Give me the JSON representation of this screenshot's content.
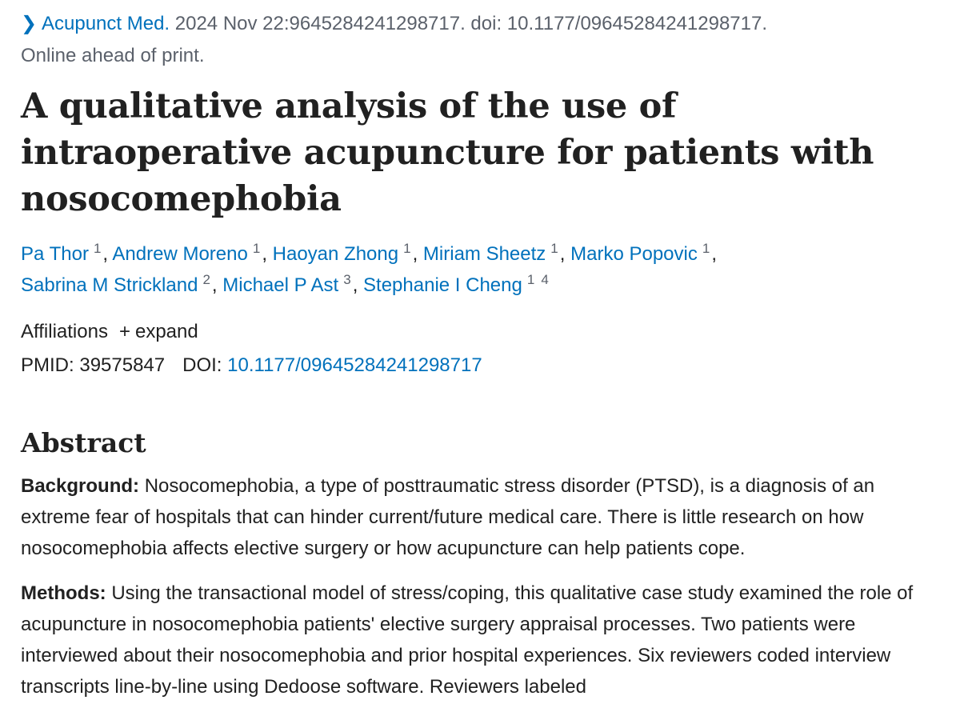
{
  "citation": {
    "journal": "Acupunct Med.",
    "details": "2024 Nov 22:9645284241298717. doi: 10.1177/09645284241298717.",
    "status": "Online ahead of print."
  },
  "title": "A qualitative analysis of the use of intraoperative acupuncture for patients with nosocomephobia",
  "authors": {
    "separator": ",",
    "list": [
      {
        "name": "Pa Thor",
        "refs": [
          "1"
        ]
      },
      {
        "name": "Andrew Moreno",
        "refs": [
          "1"
        ]
      },
      {
        "name": "Haoyan Zhong",
        "refs": [
          "1"
        ]
      },
      {
        "name": "Miriam Sheetz",
        "refs": [
          "1"
        ]
      },
      {
        "name": "Marko Popovic",
        "refs": [
          "1"
        ]
      },
      {
        "name": "Sabrina M Strickland",
        "refs": [
          "2"
        ]
      },
      {
        "name": "Michael P Ast",
        "refs": [
          "3"
        ]
      },
      {
        "name": "Stephanie I Cheng",
        "refs": [
          "1",
          "4"
        ]
      }
    ]
  },
  "affiliations": {
    "label": "Affiliations",
    "toggle": "expand"
  },
  "identifiers": {
    "pmid_label": "PMID:",
    "pmid": "39575847",
    "doi_label": "DOI:",
    "doi": "10.1177/09645284241298717"
  },
  "abstract": {
    "heading": "Abstract",
    "sections": [
      {
        "label": "Background:",
        "text": "Nosocomephobia, a type of posttraumatic stress disorder (PTSD), is a diagnosis of an extreme fear of hospitals that can hinder current/future medical care. There is little research on how nosocomephobia affects elective surgery or how acupuncture can help patients cope."
      },
      {
        "label": "Methods:",
        "text": "Using the transactional model of stress/coping, this qualitative case study examined the role of acupuncture in nosocomephobia patients' elective surgery appraisal processes. Two patients were interviewed about their nosocomephobia and prior hospital experiences. Six reviewers coded interview transcripts line-by-line using Dedoose software. Reviewers labeled"
      }
    ]
  }
}
